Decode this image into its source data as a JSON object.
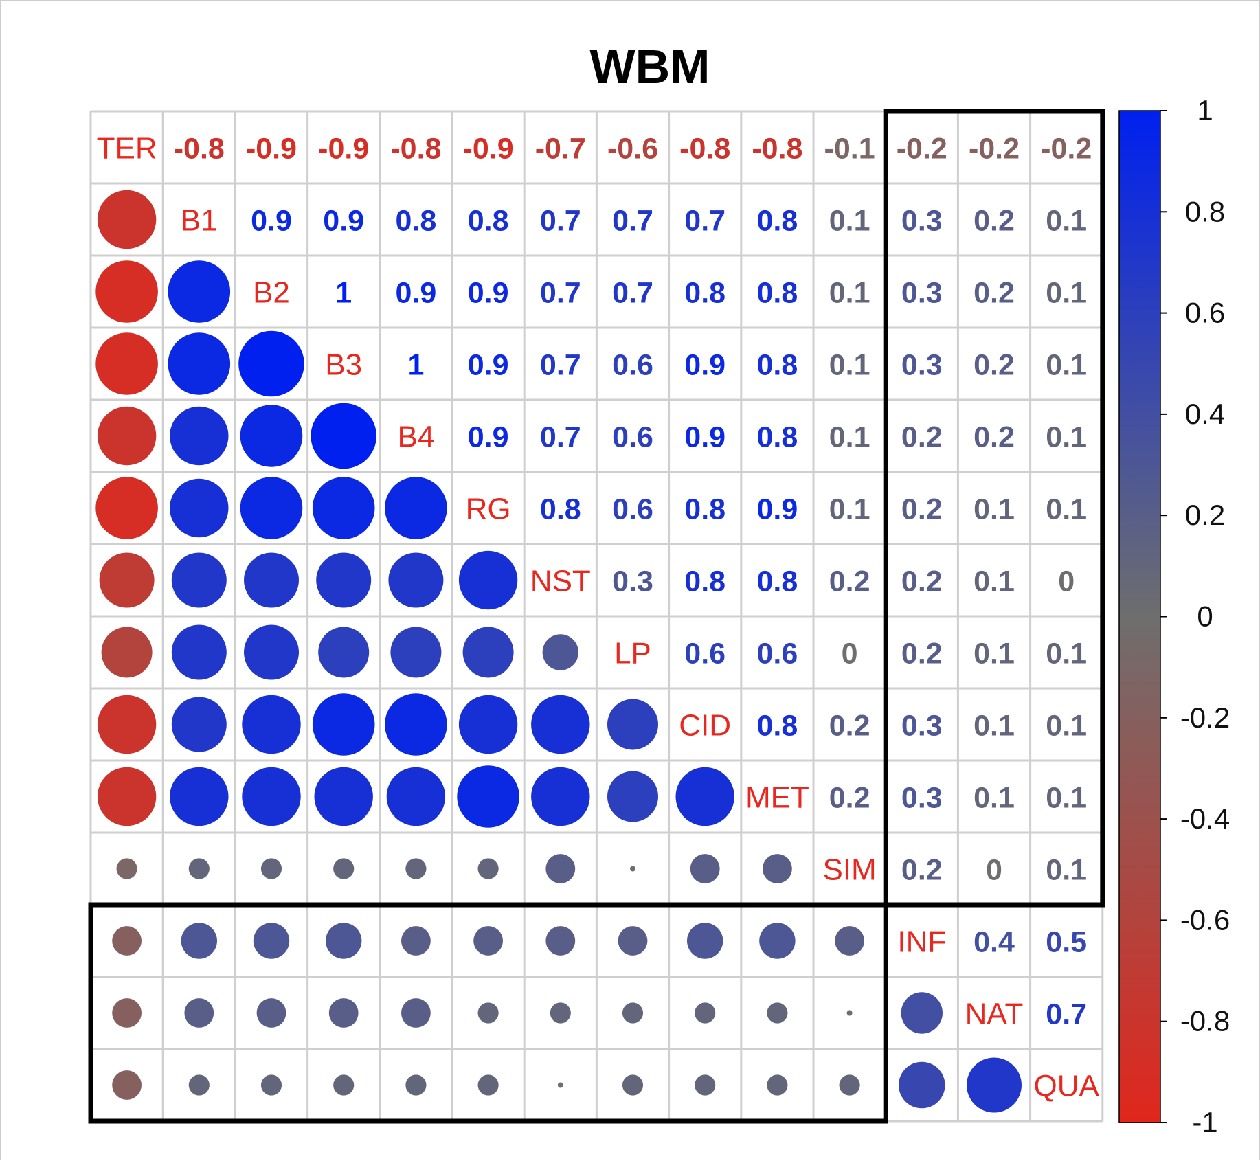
{
  "chart_data": {
    "type": "heatmap",
    "title": "WBM",
    "variables": [
      "TER",
      "B1",
      "B2",
      "B3",
      "B4",
      "RG",
      "NST",
      "LP",
      "CID",
      "MET",
      "SIM",
      "INF",
      "NAT",
      "QUA"
    ],
    "matrix": [
      [
        1,
        -0.8,
        -0.9,
        -0.9,
        -0.8,
        -0.9,
        -0.7,
        -0.6,
        -0.8,
        -0.8,
        -0.1,
        -0.2,
        -0.2,
        -0.2
      ],
      [
        -0.8,
        1,
        0.9,
        0.9,
        0.8,
        0.8,
        0.7,
        0.7,
        0.7,
        0.8,
        0.1,
        0.3,
        0.2,
        0.1
      ],
      [
        -0.9,
        0.9,
        1,
        1,
        0.9,
        0.9,
        0.7,
        0.7,
        0.8,
        0.8,
        0.1,
        0.3,
        0.2,
        0.1
      ],
      [
        -0.9,
        0.9,
        1,
        1,
        1,
        0.9,
        0.7,
        0.6,
        0.9,
        0.8,
        0.1,
        0.3,
        0.2,
        0.1
      ],
      [
        -0.8,
        0.8,
        0.9,
        1,
        1,
        0.9,
        0.7,
        0.6,
        0.9,
        0.8,
        0.1,
        0.2,
        0.2,
        0.1
      ],
      [
        -0.9,
        0.8,
        0.9,
        0.9,
        0.9,
        1,
        0.8,
        0.6,
        0.8,
        0.9,
        0.1,
        0.2,
        0.1,
        0.1
      ],
      [
        -0.7,
        0.7,
        0.7,
        0.7,
        0.7,
        0.8,
        1,
        0.3,
        0.8,
        0.8,
        0.2,
        0.2,
        0.1,
        0
      ],
      [
        -0.6,
        0.7,
        0.7,
        0.6,
        0.6,
        0.6,
        0.3,
        1,
        0.6,
        0.6,
        0,
        0.2,
        0.1,
        0.1
      ],
      [
        -0.8,
        0.7,
        0.8,
        0.9,
        0.9,
        0.8,
        0.8,
        0.6,
        1,
        0.8,
        0.2,
        0.3,
        0.1,
        0.1
      ],
      [
        -0.8,
        0.8,
        0.8,
        0.8,
        0.8,
        0.9,
        0.8,
        0.6,
        0.8,
        1,
        0.2,
        0.3,
        0.1,
        0.1
      ],
      [
        -0.1,
        0.1,
        0.1,
        0.1,
        0.1,
        0.1,
        0.2,
        0,
        0.2,
        0.2,
        1,
        0.2,
        0,
        0.1
      ],
      [
        -0.2,
        0.3,
        0.3,
        0.3,
        0.2,
        0.2,
        0.2,
        0.2,
        0.3,
        0.3,
        0.2,
        1,
        0.4,
        0.5
      ],
      [
        -0.2,
        0.2,
        0.2,
        0.2,
        0.2,
        0.1,
        0.1,
        0.1,
        0.1,
        0.1,
        0,
        0.4,
        1,
        0.7
      ],
      [
        -0.2,
        0.1,
        0.1,
        0.1,
        0.1,
        0.1,
        0,
        0.1,
        0.1,
        0.1,
        0.1,
        0.5,
        0.7,
        1
      ]
    ],
    "upper_triangle": "numbers",
    "lower_triangle": "circles",
    "diagonal": "variable names",
    "highlight_blocks": [
      {
        "rows": [
          "TER",
          "SIM"
        ],
        "cols": [
          "INF",
          "QUA"
        ]
      },
      {
        "rows": [
          "INF",
          "QUA"
        ],
        "cols": [
          "TER",
          "SIM"
        ]
      }
    ],
    "colorbar": {
      "range": [
        -1,
        1
      ],
      "ticks": [
        "1",
        "0.8",
        "0.6",
        "0.4",
        "0.2",
        "0",
        "-0.2",
        "-0.4",
        "-0.6",
        "-0.8",
        "-1"
      ],
      "colors": {
        "negative": "#e1261c",
        "zero": "#6e6e6e",
        "positive": "#0020f0"
      }
    },
    "colors": {
      "diag_label": "#e8271f",
      "grid": "#cfcfcf",
      "box": "#000000"
    }
  }
}
